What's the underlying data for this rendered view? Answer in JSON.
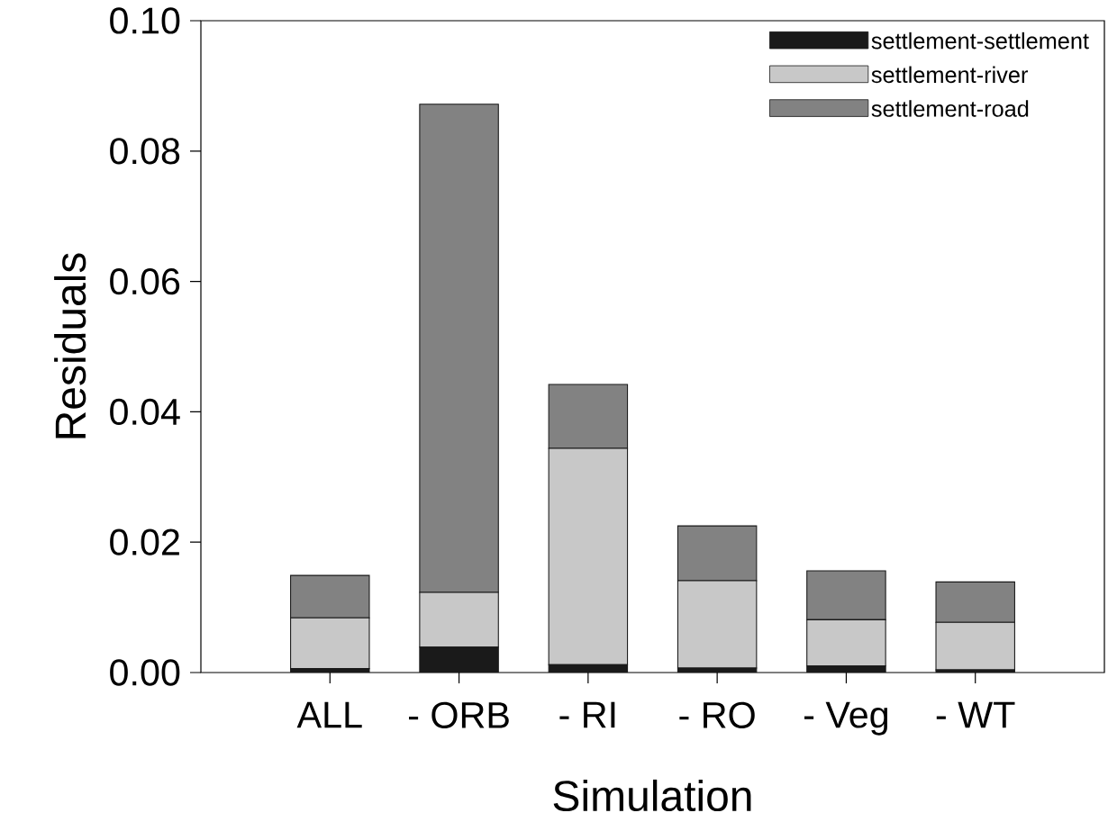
{
  "chart_data": {
    "type": "bar",
    "stacked": true,
    "xlabel": "Simulation",
    "ylabel": "Residuals",
    "categories": [
      "ALL",
      "- ORB",
      "- RI",
      "- RO",
      "- Veg",
      "- WT"
    ],
    "series": [
      {
        "name": "settlement-settlement",
        "color": "#1a1a1a",
        "values": [
          0.0006,
          0.0039,
          0.0012,
          0.0007,
          0.001,
          0.0004
        ]
      },
      {
        "name": "settlement-river",
        "color": "#c8c8c8",
        "values": [
          0.0078,
          0.0084,
          0.0332,
          0.0134,
          0.0071,
          0.0073
        ]
      },
      {
        "name": "settlement-road",
        "color": "#828282",
        "values": [
          0.0065,
          0.0749,
          0.0098,
          0.0084,
          0.0075,
          0.0062
        ]
      }
    ],
    "ylim": [
      0,
      0.1
    ],
    "yticks": [
      {
        "value": 0,
        "label": "0.00"
      },
      {
        "value": 0.02,
        "label": "0.02"
      },
      {
        "value": 0.04,
        "label": "0.04"
      },
      {
        "value": 0.06,
        "label": "0.06"
      },
      {
        "value": 0.08,
        "label": "0.08"
      },
      {
        "value": 0.1,
        "label": "0.10"
      }
    ],
    "legend": "top right"
  }
}
